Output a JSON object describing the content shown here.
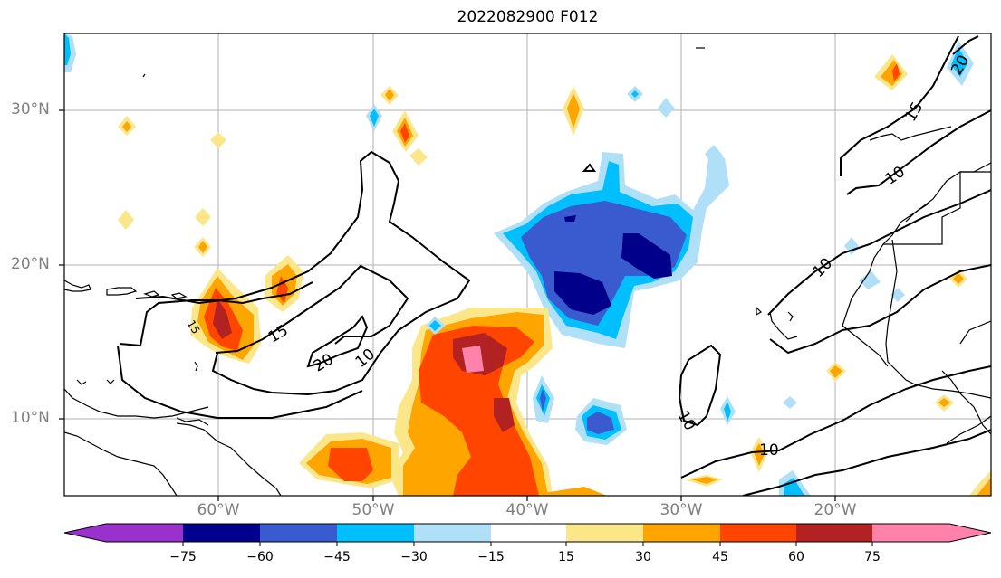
{
  "title": "2022082900 F012",
  "lat_labels": [
    "30°N",
    "20°N",
    "10°N"
  ],
  "lon_labels": [
    "60°W",
    "50°W",
    "40°W",
    "30°W",
    "20°W"
  ],
  "contour_labels": [
    "10",
    "15",
    "20",
    "10",
    "15",
    "10",
    "10",
    "10",
    "15",
    "20"
  ],
  "colorbar": {
    "ticks": [
      "−75",
      "−60",
      "−45",
      "−30",
      "−15",
      "15",
      "30",
      "45",
      "60",
      "75"
    ],
    "colors": [
      "#9932cc",
      "#00008b",
      "#3a5bd0",
      "#00bfff",
      "#b0e0f8",
      "#ffffff",
      "#fbe68a",
      "#ffa500",
      "#ff4500",
      "#b22222",
      "#ff82ab"
    ]
  }
}
